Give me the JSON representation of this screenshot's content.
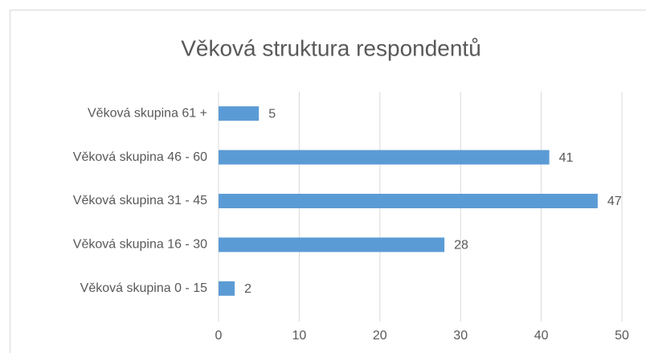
{
  "chart_data": {
    "type": "barh",
    "title": "Věková struktura respondentů",
    "categories": [
      "Věková skupina 61 +",
      "Věková skupina 46 - 60",
      "Věková skupina 31 - 45",
      "Věková skupina 16 - 30",
      "Věková skupina 0 - 15"
    ],
    "values": [
      5,
      41,
      47,
      28,
      2
    ],
    "color": "#5b9bd5",
    "xlim": [
      0,
      50
    ],
    "xticks": [
      0,
      10,
      20,
      30,
      40,
      50
    ],
    "grid": true
  }
}
